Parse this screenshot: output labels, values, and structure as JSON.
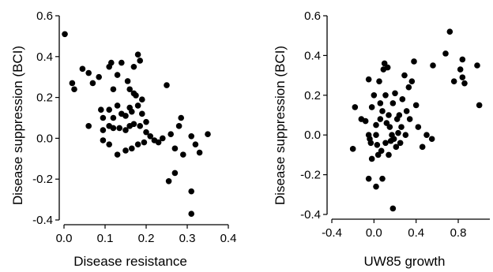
{
  "chart_data": [
    {
      "type": "scatter",
      "xlabel": "Disease resistance",
      "ylabel": "Disease suppression (BCI)",
      "xlim": [
        0,
        0.4
      ],
      "ylim": [
        -0.4,
        0.6
      ],
      "x_ticks": [
        "0.0",
        "0.1",
        "0.2",
        "0.3",
        "0.4"
      ],
      "y_ticks": [
        "0.6",
        "0.4",
        "0.2",
        "0.0",
        "-0.2",
        "-0.4"
      ],
      "grid": false,
      "marker_color": "#000000",
      "points": [
        [
          0.002,
          0.51
        ],
        [
          0.02,
          0.27
        ],
        [
          0.025,
          0.24
        ],
        [
          0.045,
          0.34
        ],
        [
          0.06,
          0.32
        ],
        [
          0.07,
          0.27
        ],
        [
          0.085,
          0.3
        ],
        [
          0.11,
          0.35
        ],
        [
          0.115,
          0.37
        ],
        [
          0.13,
          0.31
        ],
        [
          0.14,
          0.37
        ],
        [
          0.155,
          0.28
        ],
        [
          0.17,
          0.35
        ],
        [
          0.18,
          0.41
        ],
        [
          0.185,
          0.38
        ],
        [
          0.12,
          0.24
        ],
        [
          0.16,
          0.24
        ],
        [
          0.17,
          0.22
        ],
        [
          0.175,
          0.21
        ],
        [
          0.19,
          0.19
        ],
        [
          0.18,
          0.16
        ],
        [
          0.06,
          0.06
        ],
        [
          0.09,
          0.14
        ],
        [
          0.095,
          0.1
        ],
        [
          0.11,
          0.14
        ],
        [
          0.12,
          0.1
        ],
        [
          0.13,
          0.16
        ],
        [
          0.14,
          0.12
        ],
        [
          0.15,
          0.11
        ],
        [
          0.16,
          0.15
        ],
        [
          0.165,
          0.13
        ],
        [
          0.19,
          0.12
        ],
        [
          0.2,
          0.08
        ],
        [
          0.095,
          0.04
        ],
        [
          0.11,
          0.06
        ],
        [
          0.12,
          0.05
        ],
        [
          0.135,
          0.05
        ],
        [
          0.15,
          0.04
        ],
        [
          0.16,
          0.06
        ],
        [
          0.17,
          0.07
        ],
        [
          0.185,
          0.06
        ],
        [
          0.2,
          0.03
        ],
        [
          0.21,
          0.01
        ],
        [
          0.22,
          -0.01
        ],
        [
          0.23,
          -0.02
        ],
        [
          0.24,
          0.0
        ],
        [
          0.095,
          -0.01
        ],
        [
          0.11,
          -0.03
        ],
        [
          0.13,
          -0.08
        ],
        [
          0.15,
          -0.06
        ],
        [
          0.165,
          -0.05
        ],
        [
          0.18,
          -0.03
        ],
        [
          0.195,
          -0.02
        ],
        [
          0.25,
          0.26
        ],
        [
          0.26,
          0.02
        ],
        [
          0.27,
          -0.05
        ],
        [
          0.28,
          0.06
        ],
        [
          0.285,
          0.1
        ],
        [
          0.29,
          -0.08
        ],
        [
          0.255,
          -0.21
        ],
        [
          0.27,
          -0.17
        ],
        [
          0.31,
          0.01
        ],
        [
          0.32,
          -0.03
        ],
        [
          0.33,
          -0.07
        ],
        [
          0.35,
          0.02
        ],
        [
          0.31,
          -0.26
        ],
        [
          0.31,
          -0.37
        ]
      ]
    },
    {
      "type": "scatter",
      "xlabel": "UW85 growth",
      "ylabel": "Disease suppression (BCI)",
      "xlim": [
        -0.4,
        1.1
      ],
      "ylim": [
        -0.4,
        0.6
      ],
      "x_ticks": [
        "-0.4",
        "0.0",
        "0.4",
        "0.8"
      ],
      "y_ticks": [
        "0.6",
        "0.4",
        "0.2",
        "0.0",
        "-0.2",
        "-0.4"
      ],
      "grid": false,
      "marker_color": "#000000",
      "points": [
        [
          -0.18,
          0.14
        ],
        [
          -0.2,
          -0.07
        ],
        [
          -0.12,
          0.08
        ],
        [
          -0.08,
          0.07
        ],
        [
          -0.05,
          0.28
        ],
        [
          -0.02,
          0.14
        ],
        [
          -0.05,
          0.0
        ],
        [
          -0.03,
          -0.04
        ],
        [
          0.0,
          0.2
        ],
        [
          0.02,
          0.05
        ],
        [
          0.03,
          -0.05
        ],
        [
          0.05,
          0.27
        ],
        [
          0.06,
          0.08
        ],
        [
          0.07,
          -0.08
        ],
        [
          0.09,
          0.33
        ],
        [
          0.1,
          0.36
        ],
        [
          0.11,
          0.2
        ],
        [
          0.12,
          0.06
        ],
        [
          0.13,
          0.34
        ],
        [
          0.14,
          0.1
        ],
        [
          0.15,
          0.04
        ],
        [
          0.16,
          -0.03
        ],
        [
          0.18,
          0.16
        ],
        [
          0.2,
          0.21
        ],
        [
          0.22,
          0.08
        ],
        [
          0.23,
          0.01
        ],
        [
          0.25,
          -0.04
        ],
        [
          0.27,
          0.18
        ],
        [
          0.29,
          0.3
        ],
        [
          0.31,
          0.12
        ],
        [
          0.33,
          0.24
        ],
        [
          0.36,
          0.27
        ],
        [
          0.38,
          0.37
        ],
        [
          0.4,
          0.15
        ],
        [
          0.42,
          0.04
        ],
        [
          0.02,
          0.0
        ],
        [
          0.04,
          -0.1
        ],
        [
          -0.02,
          -0.12
        ],
        [
          -0.04,
          -0.02
        ],
        [
          0.06,
          0.16
        ],
        [
          0.08,
          0.12
        ],
        [
          0.11,
          -0.04
        ],
        [
          0.14,
          -0.1
        ],
        [
          0.17,
          0.0
        ],
        [
          0.19,
          -0.02
        ],
        [
          0.21,
          -0.06
        ],
        [
          0.24,
          0.1
        ],
        [
          0.26,
          0.04
        ],
        [
          0.3,
          0.0
        ],
        [
          0.34,
          0.08
        ],
        [
          0.5,
          0.0
        ],
        [
          0.55,
          -0.02
        ],
        [
          0.46,
          -0.06
        ],
        [
          -0.05,
          -0.22
        ],
        [
          0.02,
          -0.26
        ],
        [
          0.08,
          -0.22
        ],
        [
          0.18,
          -0.37
        ],
        [
          0.56,
          0.35
        ],
        [
          0.68,
          0.41
        ],
        [
          0.72,
          0.52
        ],
        [
          0.76,
          0.27
        ],
        [
          0.82,
          0.33
        ],
        [
          0.84,
          0.38
        ],
        [
          0.86,
          0.26
        ],
        [
          0.84,
          0.29
        ],
        [
          0.98,
          0.35
        ],
        [
          1.0,
          0.15
        ]
      ]
    }
  ]
}
